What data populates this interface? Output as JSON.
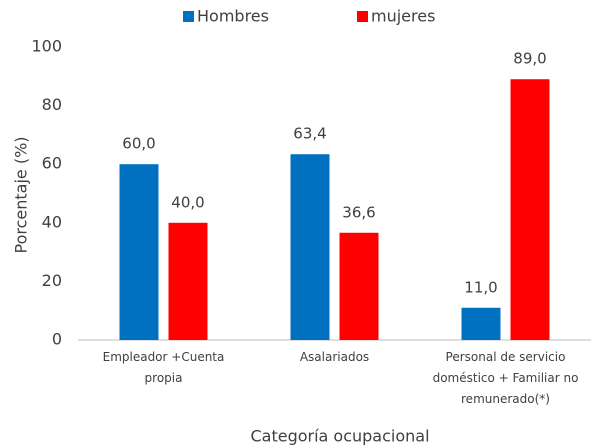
{
  "chart_data": {
    "type": "bar",
    "x_label": "Categoría ocupacional",
    "y_label": "Porcentaje (%)",
    "categories": [
      "Empleador +Cuenta propia",
      "Asalariados",
      "Personal de servicio doméstico + Familiar no remunerado(*)"
    ],
    "series": [
      {
        "name": "Hombres",
        "color": "#0070c0",
        "values": [
          60.0,
          63.4,
          11.0
        ],
        "value_labels": [
          "60,0",
          "63,4",
          "11,0"
        ]
      },
      {
        "name": "mujeres",
        "color": "#ff0000",
        "values": [
          40.0,
          36.6,
          89.0
        ],
        "value_labels": [
          "40,0",
          "36,6",
          "89,0"
        ]
      }
    ],
    "ylim": [
      0,
      100
    ],
    "yticks": [
      0,
      20,
      40,
      60,
      80,
      100
    ],
    "grid": false,
    "legend": "top"
  }
}
